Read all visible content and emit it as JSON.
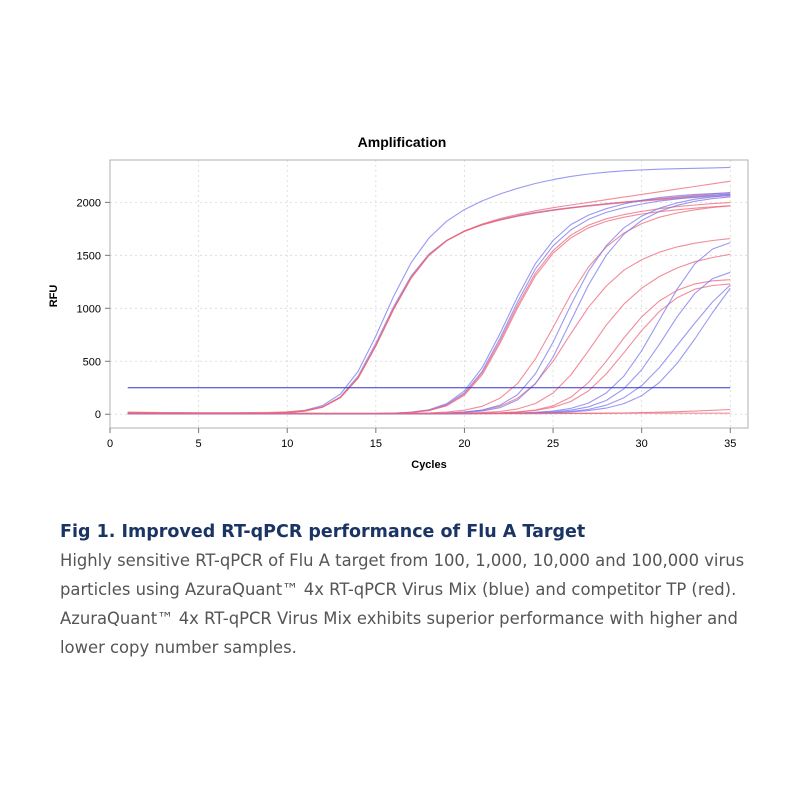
{
  "chart_data": {
    "type": "line",
    "title": "Amplification",
    "xlabel": "Cycles",
    "ylabel": "RFU",
    "xlim": [
      0,
      36
    ],
    "ylim": [
      -130,
      2400
    ],
    "x_ticks": [
      0,
      5,
      10,
      15,
      20,
      25,
      30,
      35
    ],
    "y_ticks": [
      0,
      500,
      1000,
      1500,
      2000
    ],
    "grid": true,
    "legend": "none",
    "threshold": 250,
    "x": [
      1,
      2,
      3,
      4,
      5,
      6,
      7,
      8,
      9,
      10,
      11,
      12,
      13,
      14,
      15,
      16,
      17,
      18,
      19,
      20,
      21,
      22,
      23,
      24,
      25,
      26,
      27,
      28,
      29,
      30,
      31,
      32,
      33,
      34,
      35
    ],
    "series": [
      {
        "group": "blue",
        "values": [
          10,
          10,
          10,
          10,
          10,
          10,
          10,
          11,
          13,
          20,
          37,
          82,
          190,
          404,
          738,
          1112,
          1433,
          1664,
          1822,
          1932,
          2014,
          2079,
          2133,
          2178,
          2215,
          2245,
          2268,
          2285,
          2298,
          2307,
          2313,
          2318,
          2322,
          2325,
          2330
        ]
      },
      {
        "group": "blue",
        "values": [
          10,
          10,
          10,
          10,
          10,
          10,
          10,
          10,
          12,
          17,
          32,
          70,
          165,
          360,
          670,
          1015,
          1308,
          1512,
          1642,
          1730,
          1792,
          1838,
          1875,
          1905,
          1930,
          1951,
          1970,
          1987,
          2002,
          2017,
          2031,
          2045,
          2058,
          2070,
          2080
        ]
      },
      {
        "group": "red",
        "values": [
          20,
          18,
          16,
          15,
          14,
          14,
          14,
          15,
          17,
          22,
          35,
          70,
          160,
          345,
          650,
          1000,
          1295,
          1505,
          1640,
          1728,
          1788,
          1833,
          1870,
          1900,
          1926,
          1948,
          1968,
          1986,
          2003,
          2019,
          2035,
          2051,
          2066,
          2080,
          2092
        ]
      },
      {
        "group": "red",
        "values": [
          10,
          10,
          10,
          10,
          10,
          10,
          10,
          10,
          12,
          16,
          30,
          66,
          156,
          340,
          642,
          990,
          1287,
          1500,
          1638,
          1730,
          1796,
          1846,
          1886,
          1920,
          1950,
          1975,
          2000,
          2025,
          2050,
          2075,
          2100,
          2125,
          2150,
          2175,
          2200
        ]
      },
      {
        "group": "red",
        "values": [
          10,
          10,
          10,
          10,
          10,
          10,
          10,
          10,
          12,
          16,
          30,
          67,
          157,
          342,
          645,
          992,
          1289,
          1500,
          1637,
          1725,
          1787,
          1833,
          1869,
          1899,
          1925,
          1946,
          1965,
          1982,
          1997,
          2011,
          2024,
          2036,
          2046,
          2055,
          2062
        ]
      },
      {
        "group": "blue",
        "values": [
          5,
          5,
          5,
          5,
          5,
          5,
          5,
          5,
          5,
          5,
          5,
          5,
          5,
          6,
          7,
          10,
          19,
          42,
          99,
          220,
          440,
          760,
          1110,
          1420,
          1640,
          1790,
          1880,
          1940,
          1985,
          2020,
          2045,
          2062,
          2075,
          2083,
          2090
        ]
      },
      {
        "group": "blue",
        "values": [
          5,
          5,
          5,
          5,
          5,
          5,
          5,
          5,
          5,
          5,
          5,
          5,
          5,
          6,
          7,
          10,
          18,
          38,
          90,
          200,
          405,
          715,
          1060,
          1370,
          1590,
          1740,
          1840,
          1905,
          1950,
          1985,
          2012,
          2033,
          2050,
          2064,
          2075
        ]
      },
      {
        "group": "red",
        "values": [
          5,
          5,
          5,
          5,
          5,
          5,
          5,
          5,
          5,
          5,
          5,
          5,
          5,
          6,
          7,
          10,
          17,
          36,
          85,
          190,
          390,
          690,
          1030,
          1330,
          1545,
          1690,
          1785,
          1845,
          1885,
          1915,
          1940,
          1960,
          1975,
          1988,
          1998
        ]
      },
      {
        "group": "red",
        "values": [
          5,
          5,
          5,
          5,
          5,
          5,
          5,
          5,
          5,
          5,
          5,
          5,
          5,
          6,
          7,
          9,
          16,
          34,
          80,
          180,
          372,
          668,
          1005,
          1305,
          1520,
          1665,
          1760,
          1820,
          1860,
          1890,
          1912,
          1930,
          1945,
          1958,
          1968
        ]
      },
      {
        "group": "red",
        "values": [
          5,
          5,
          5,
          5,
          5,
          5,
          5,
          5,
          5,
          5,
          5,
          5,
          5,
          5,
          5,
          6,
          8,
          12,
          20,
          38,
          75,
          150,
          290,
          520,
          820,
          1130,
          1390,
          1580,
          1710,
          1800,
          1860,
          1900,
          1930,
          1952,
          1968
        ]
      },
      {
        "group": "red",
        "values": [
          5,
          5,
          5,
          5,
          5,
          5,
          5,
          5,
          5,
          5,
          5,
          5,
          5,
          5,
          5,
          5,
          6,
          8,
          12,
          20,
          38,
          75,
          150,
          290,
          500,
          760,
          1010,
          1210,
          1360,
          1460,
          1530,
          1580,
          1615,
          1640,
          1658
        ]
      },
      {
        "group": "blue",
        "values": [
          5,
          5,
          5,
          5,
          5,
          5,
          5,
          5,
          5,
          5,
          5,
          5,
          5,
          5,
          5,
          5,
          6,
          8,
          12,
          20,
          40,
          85,
          185,
          380,
          680,
          1030,
          1350,
          1590,
          1760,
          1870,
          1945,
          1995,
          2030,
          2052,
          2068
        ]
      },
      {
        "group": "blue",
        "values": [
          5,
          5,
          5,
          5,
          5,
          5,
          5,
          5,
          5,
          5,
          5,
          5,
          5,
          5,
          5,
          5,
          6,
          7,
          10,
          16,
          30,
          62,
          135,
          285,
          540,
          880,
          1220,
          1500,
          1700,
          1830,
          1915,
          1972,
          2010,
          2036,
          2052
        ]
      },
      {
        "group": "red",
        "values": [
          5,
          5,
          5,
          5,
          5,
          5,
          5,
          5,
          5,
          5,
          5,
          5,
          5,
          5,
          5,
          5,
          5,
          6,
          7,
          10,
          15,
          25,
          50,
          100,
          200,
          370,
          600,
          840,
          1040,
          1190,
          1300,
          1380,
          1440,
          1480,
          1510
        ]
      },
      {
        "group": "red",
        "values": [
          5,
          5,
          5,
          5,
          5,
          5,
          5,
          5,
          5,
          5,
          5,
          5,
          5,
          5,
          5,
          5,
          5,
          5,
          6,
          7,
          9,
          13,
          22,
          40,
          80,
          160,
          300,
          500,
          720,
          920,
          1070,
          1170,
          1230,
          1260,
          1270
        ]
      },
      {
        "group": "red",
        "values": [
          5,
          5,
          5,
          5,
          5,
          5,
          5,
          5,
          5,
          5,
          5,
          5,
          5,
          5,
          5,
          5,
          5,
          5,
          6,
          7,
          9,
          12,
          20,
          35,
          65,
          120,
          220,
          380,
          580,
          790,
          970,
          1100,
          1180,
          1215,
          1230
        ]
      },
      {
        "group": "blue",
        "values": [
          5,
          5,
          5,
          5,
          5,
          5,
          5,
          5,
          5,
          5,
          5,
          5,
          5,
          5,
          5,
          5,
          5,
          5,
          5,
          6,
          7,
          9,
          12,
          18,
          30,
          55,
          105,
          200,
          360,
          600,
          890,
          1180,
          1420,
          1560,
          1620
        ]
      },
      {
        "group": "blue",
        "values": [
          5,
          5,
          5,
          5,
          5,
          5,
          5,
          5,
          5,
          5,
          5,
          5,
          5,
          5,
          5,
          5,
          5,
          5,
          5,
          6,
          7,
          8,
          10,
          14,
          22,
          38,
          70,
          130,
          240,
          420,
          660,
          920,
          1140,
          1280,
          1340
        ]
      },
      {
        "group": "blue",
        "values": [
          5,
          5,
          5,
          5,
          5,
          5,
          5,
          5,
          5,
          5,
          5,
          5,
          5,
          5,
          5,
          5,
          5,
          5,
          5,
          5,
          6,
          7,
          9,
          12,
          17,
          27,
          46,
          85,
          155,
          270,
          440,
          650,
          860,
          1060,
          1220
        ]
      },
      {
        "group": "blue",
        "values": [
          5,
          5,
          5,
          5,
          5,
          5,
          5,
          5,
          5,
          5,
          5,
          5,
          5,
          5,
          5,
          5,
          5,
          5,
          5,
          5,
          6,
          7,
          8,
          10,
          14,
          21,
          34,
          58,
          100,
          175,
          300,
          480,
          710,
          960,
          1190
        ]
      },
      {
        "group": "red",
        "values": [
          5,
          5,
          5,
          5,
          5,
          5,
          5,
          5,
          5,
          5,
          5,
          5,
          5,
          5,
          5,
          5,
          5,
          5,
          5,
          5,
          5,
          5,
          5,
          5,
          6,
          7,
          8,
          10,
          12,
          15,
          19,
          24,
          30,
          37,
          45
        ]
      },
      {
        "group": "red",
        "values": [
          15,
          14,
          13,
          12,
          12,
          12,
          12,
          12,
          11,
          11,
          11,
          10,
          10,
          10,
          10,
          10,
          10,
          10,
          10,
          10,
          10,
          10,
          10,
          10,
          10,
          10,
          10,
          10,
          10,
          10,
          10,
          10,
          10,
          10,
          10
        ]
      }
    ]
  },
  "colors": {
    "blue_series": "#7777ee",
    "red_series": "#ee6677",
    "threshold_line": "#3333cc",
    "grid": "#d8d8d8",
    "caption_title": "#1a3563",
    "caption_body": "#555555"
  },
  "caption": {
    "title": "Fig 1.  Improved RT-qPCR performance of Flu A Target",
    "body": "Highly sensitive RT-qPCR of Flu A target from 100, 1,000, 10,000 and 100,000 virus particles using AzuraQuant™ 4x RT-qPCR Virus Mix (blue) and competitor TP (red). AzuraQuant™ 4x RT-qPCR Virus Mix exhibits superior performance with higher and lower copy number samples."
  }
}
